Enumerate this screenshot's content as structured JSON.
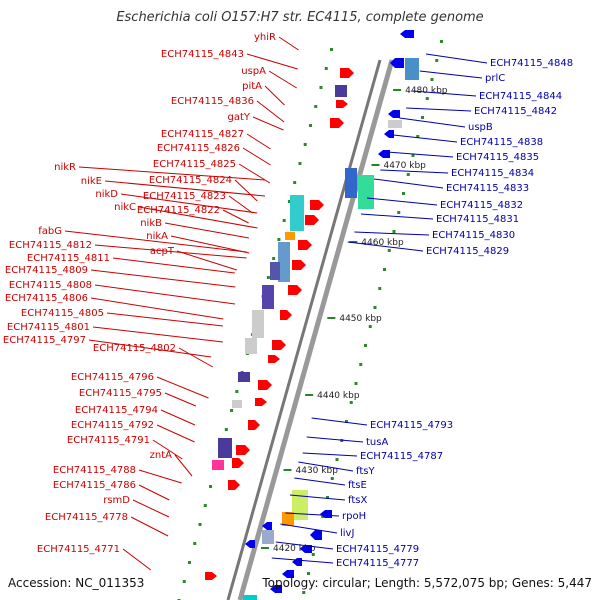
{
  "title": "Escherichia coli O157:H7 str. EC4115, complete genome",
  "footer": {
    "accession": "Accession: NC_011353",
    "summary": "Topology: circular; Length: 5,572,075 bp; Genes: 5,447"
  },
  "colors": {
    "left_label": "#cc0000",
    "right_label": "#0000aa",
    "forward_gene": "#ff0000",
    "reverse_gene": "#0000ee",
    "backbone": "#888888",
    "tick": "#228822"
  },
  "kbp_ticks": [
    "4480 kbp",
    "4470 kbp",
    "4460 kbp",
    "4450 kbp",
    "4440 kbp",
    "4430 kbp",
    "4420 kbp"
  ],
  "left_labels": [
    "yhiR",
    "ECH74115_4843",
    "uspA",
    "pitA",
    "ECH74115_4836",
    "gatY",
    "ECH74115_4827",
    "ECH74115_4826",
    "ECH74115_4825",
    "ECH74115_4824",
    "nikR",
    "nikE",
    "ECH74115_4823",
    "nikD",
    "nikC",
    "ECH74115_4822",
    "nikB",
    "nikA",
    "acpT",
    "fabG",
    "ECH74115_4812",
    "ECH74115_4811",
    "ECH74115_4809",
    "ECH74115_4808",
    "ECH74115_4806",
    "ECH74115_4805",
    "ECH74115_4801",
    "ECH74115_4797",
    "ECH74115_4802",
    "ECH74115_4796",
    "ECH74115_4795",
    "ECH74115_4794",
    "ECH74115_4792",
    "ECH74115_4791",
    "zntA",
    "ECH74115_4788",
    "ECH74115_4786",
    "rsmD",
    "ECH74115_4778",
    "ECH74115_4771"
  ],
  "right_labels": [
    "ECH74115_4848",
    "prlC",
    "ECH74115_4844",
    "ECH74115_4842",
    "uspB",
    "ECH74115_4838",
    "ECH74115_4835",
    "ECH74115_4834",
    "ECH74115_4833",
    "ECH74115_4832",
    "ECH74115_4831",
    "ECH74115_4830",
    "ECH74115_4829",
    "ECH74115_4793",
    "tusA",
    "ECH74115_4787",
    "ftsY",
    "ftsE",
    "ftsX",
    "rpoH",
    "livJ",
    "ECH74115_4779",
    "ECH74115_4777"
  ]
}
